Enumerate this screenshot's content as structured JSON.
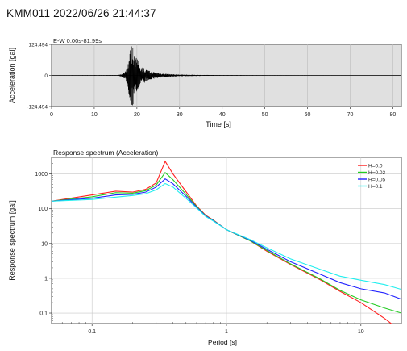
{
  "page_title": "KMM011 2022/06/26 21:44:37",
  "chart_data": [
    {
      "type": "line",
      "title": "E-W 0.00s-81.99s",
      "xlabel": "Time [s]",
      "ylabel": "Acceleration [gal]",
      "xlim": [
        0,
        82
      ],
      "ylim": [
        -124.494,
        124.494
      ],
      "x_ticks": [
        0,
        10,
        20,
        30,
        40,
        50,
        60,
        70,
        80
      ],
      "x_tick_labels": [
        "0",
        "10",
        "20",
        "30",
        "40",
        "50",
        "60",
        "70",
        "80"
      ],
      "y_ticks": [
        124.494,
        0,
        -124.494
      ],
      "y_tick_labels": [
        "124.494",
        "0",
        "-124.494"
      ],
      "grid": true,
      "background": "#e0e0e0",
      "line_color": "#000000",
      "envelope": {
        "t": [
          0,
          15.5,
          16.5,
          17.2,
          17.8,
          18.2,
          18.6,
          19.0,
          19.4,
          19.8,
          20.3,
          21.0,
          22.0,
          23.0,
          24.5,
          26,
          28,
          30,
          35,
          40,
          50,
          60,
          70,
          80,
          82
        ],
        "amp": [
          0.4,
          1.2,
          6,
          16,
          40,
          88,
          118,
          124,
          102,
          82,
          58,
          40,
          26,
          18,
          12,
          8,
          5,
          3.5,
          2,
          1.2,
          0.7,
          0.5,
          0.4,
          0.3,
          0.3
        ]
      }
    },
    {
      "type": "line",
      "title": "Response spectrum (Acceleration)",
      "xlabel": "Period [s]",
      "ylabel": "Response spectrum [gal]",
      "xscale": "log",
      "yscale": "log",
      "xlim": [
        0.05,
        20
      ],
      "ylim": [
        0.05,
        3000
      ],
      "x_ticks": [
        0.1,
        1,
        10
      ],
      "x_tick_labels": [
        "0.1",
        "1",
        "10"
      ],
      "y_ticks": [
        0.1,
        1,
        10,
        100,
        1000
      ],
      "y_tick_labels": [
        "0.1",
        "1",
        "10",
        "100",
        "1000"
      ],
      "grid": true,
      "legend_position": "top-right",
      "x": [
        0.05,
        0.1,
        0.15,
        0.2,
        0.25,
        0.3,
        0.35,
        0.4,
        0.5,
        0.6,
        0.7,
        0.8,
        1,
        1.5,
        2,
        3,
        5,
        7,
        10,
        15,
        20
      ],
      "series": [
        {
          "name": "H=0.0",
          "color": "#ff2020",
          "values": [
            165,
            250,
            320,
            300,
            360,
            550,
            2300,
            1000,
            310,
            120,
            65,
            47,
            25,
            12,
            6,
            2.5,
            0.9,
            0.42,
            0.2,
            0.07,
            0.03
          ]
        },
        {
          "name": "H=0.02",
          "color": "#22cc22",
          "values": [
            165,
            220,
            290,
            280,
            330,
            480,
            1100,
            680,
            260,
            115,
            63,
            46,
            25,
            12,
            6.3,
            2.6,
            0.95,
            0.45,
            0.24,
            0.14,
            0.1
          ]
        },
        {
          "name": "H=0.05",
          "color": "#2222ff",
          "values": [
            165,
            200,
            250,
            260,
            300,
            420,
            720,
            520,
            230,
            110,
            62,
            45,
            25,
            12.5,
            6.8,
            3.0,
            1.3,
            0.75,
            0.5,
            0.38,
            0.25
          ]
        },
        {
          "name": "H=0.1",
          "color": "#22eeee",
          "values": [
            165,
            185,
            215,
            240,
            270,
            350,
            530,
            420,
            200,
            105,
            60,
            44,
            25,
            13,
            7.5,
            3.6,
            1.8,
            1.15,
            0.88,
            0.66,
            0.48
          ]
        }
      ]
    }
  ]
}
